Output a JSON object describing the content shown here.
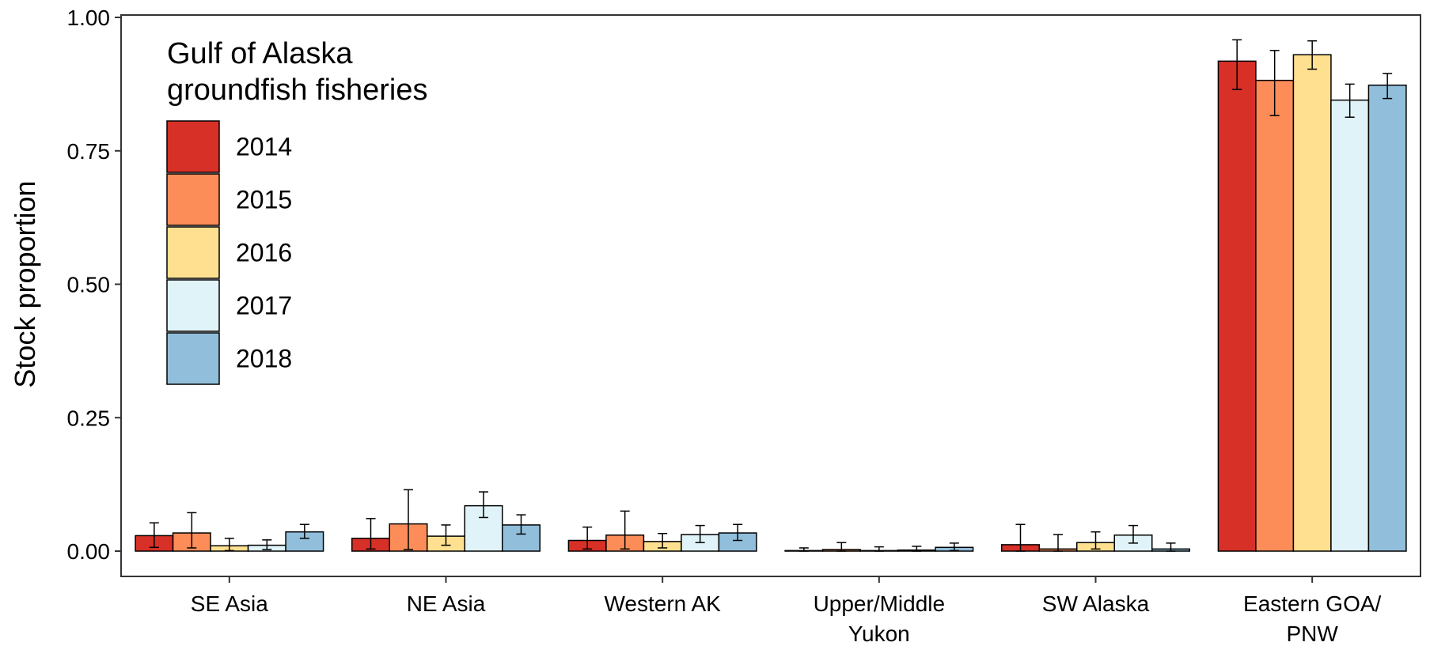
{
  "chart_data": {
    "type": "bar",
    "title": "",
    "xlabel": "",
    "ylabel": "Stock proportion",
    "ylim": [
      0,
      1
    ],
    "yticks": [
      "0.00",
      "0.25",
      "0.50",
      "0.75",
      "1.00"
    ],
    "grid": false,
    "legend": {
      "title_lines": [
        "Gulf of Alaska",
        "groundfish fisheries"
      ],
      "placement": "top-left"
    },
    "categories": [
      [
        "SE Asia"
      ],
      [
        "NE Asia"
      ],
      [
        "Western AK"
      ],
      [
        "Upper/Middle",
        "Yukon"
      ],
      [
        "SW Alaska"
      ],
      [
        "Eastern GOA/",
        "PNW"
      ]
    ],
    "series": [
      {
        "name": "2014",
        "color": "#D73027",
        "values": [
          0.029,
          0.024,
          0.02,
          0.001,
          0.012,
          0.918
        ],
        "lower": [
          0.007,
          0.004,
          0.004,
          0.0,
          0.0,
          0.865
        ],
        "upper": [
          0.053,
          0.061,
          0.045,
          0.006,
          0.05,
          0.958
        ]
      },
      {
        "name": "2015",
        "color": "#FC8D59",
        "values": [
          0.034,
          0.051,
          0.03,
          0.003,
          0.004,
          0.882
        ],
        "lower": [
          0.006,
          0.003,
          0.004,
          0.0,
          0.0,
          0.816
        ],
        "upper": [
          0.072,
          0.115,
          0.075,
          0.016,
          0.031,
          0.938
        ]
      },
      {
        "name": "2016",
        "color": "#FEE090",
        "values": [
          0.01,
          0.028,
          0.018,
          0.001,
          0.016,
          0.93
        ],
        "lower": [
          0.001,
          0.011,
          0.006,
          0.0,
          0.004,
          0.903
        ],
        "upper": [
          0.024,
          0.049,
          0.033,
          0.008,
          0.036,
          0.956
        ]
      },
      {
        "name": "2017",
        "color": "#E0F3F8",
        "values": [
          0.011,
          0.085,
          0.031,
          0.002,
          0.03,
          0.845
        ],
        "lower": [
          0.003,
          0.063,
          0.016,
          0.0,
          0.015,
          0.813
        ],
        "upper": [
          0.021,
          0.111,
          0.048,
          0.009,
          0.048,
          0.875
        ]
      },
      {
        "name": "2018",
        "color": "#91BFDB",
        "values": [
          0.036,
          0.049,
          0.034,
          0.007,
          0.004,
          0.873
        ],
        "lower": [
          0.024,
          0.032,
          0.02,
          0.001,
          0.0,
          0.848
        ],
        "upper": [
          0.05,
          0.068,
          0.05,
          0.015,
          0.015,
          0.895
        ]
      }
    ]
  }
}
